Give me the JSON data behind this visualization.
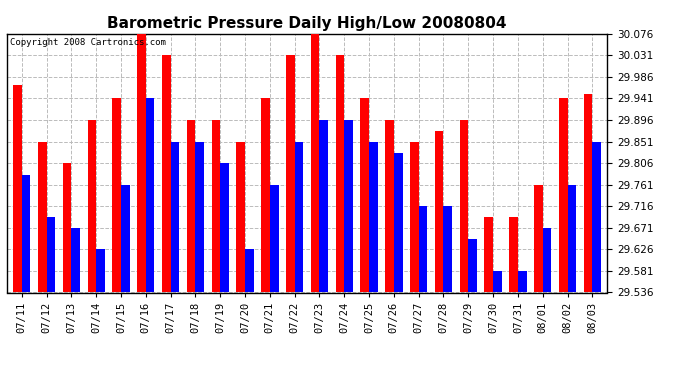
{
  "title": "Barometric Pressure Daily High/Low 20080804",
  "copyright_text": "Copyright 2008 Cartronics.com",
  "dates": [
    "07/11",
    "07/12",
    "07/13",
    "07/14",
    "07/15",
    "07/16",
    "07/17",
    "07/18",
    "07/19",
    "07/20",
    "07/21",
    "07/22",
    "07/23",
    "07/24",
    "07/25",
    "07/26",
    "07/27",
    "07/28",
    "07/29",
    "07/30",
    "07/31",
    "08/01",
    "08/02",
    "08/03"
  ],
  "highs": [
    29.97,
    29.851,
    29.806,
    29.896,
    29.941,
    30.076,
    30.031,
    29.896,
    29.896,
    29.851,
    29.941,
    30.031,
    30.076,
    30.031,
    29.941,
    29.896,
    29.851,
    29.873,
    29.896,
    29.693,
    29.693,
    29.761,
    29.941,
    29.951
  ],
  "lows": [
    29.782,
    29.693,
    29.671,
    29.626,
    29.761,
    29.941,
    29.851,
    29.851,
    29.806,
    29.626,
    29.761,
    29.851,
    29.896,
    29.896,
    29.851,
    29.828,
    29.716,
    29.716,
    29.648,
    29.581,
    29.581,
    29.671,
    29.761,
    29.851
  ],
  "high_color": "#ff0000",
  "low_color": "#0000ff",
  "background_color": "#ffffff",
  "grid_color": "#bbbbbb",
  "bar_width": 0.35,
  "ylim_min": 29.536,
  "ylim_max": 30.076,
  "yticks": [
    29.536,
    29.581,
    29.626,
    29.671,
    29.716,
    29.761,
    29.806,
    29.851,
    29.896,
    29.941,
    29.986,
    30.031,
    30.076
  ],
  "title_fontsize": 11,
  "tick_fontsize": 7.5,
  "copyright_fontsize": 6.5
}
